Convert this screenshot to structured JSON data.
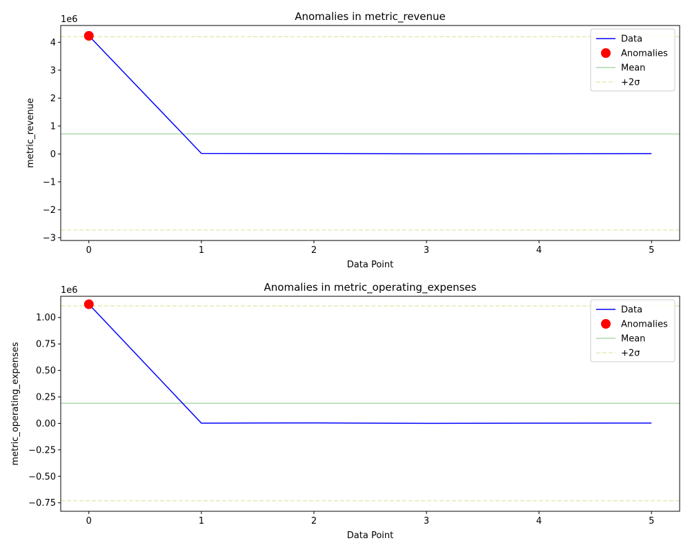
{
  "chart_data": [
    {
      "type": "line",
      "title": "Anomalies in metric_revenue",
      "xlabel": "Data Point",
      "ylabel": "metric_revenue",
      "offset_text": "1e6",
      "x": [
        0,
        1,
        2,
        3,
        4,
        5
      ],
      "xlim": [
        -0.25,
        5.25
      ],
      "ylim": [
        -3.1,
        4.6
      ],
      "xticks": [
        0,
        1,
        2,
        3,
        4,
        5
      ],
      "yticks": [
        -3,
        -2,
        -1,
        0,
        1,
        2,
        3,
        4
      ],
      "series": [
        {
          "name": "Data",
          "kind": "line",
          "color": "#0000ff",
          "values": [
            4.23,
            0.02,
            0.015,
            0.005,
            0.008,
            0.012
          ]
        }
      ],
      "anomalies": {
        "name": "Anomalies",
        "color": "#ff0000",
        "x": [
          0
        ],
        "values": [
          4.23
        ]
      },
      "mean": {
        "name": "Mean",
        "color": "#2ca02c",
        "value": 0.715
      },
      "upper": {
        "name": "+2σ",
        "color": "#bcbd22",
        "value": 4.2
      },
      "lower": {
        "value": -2.73
      },
      "legend": "top-right",
      "grid": false
    },
    {
      "type": "line",
      "title": "Anomalies in metric_operating_expenses",
      "xlabel": "Data Point",
      "ylabel": "metric_operating_expenses",
      "offset_text": "1e6",
      "x": [
        0,
        1,
        2,
        3,
        4,
        5
      ],
      "xlim": [
        -0.25,
        5.25
      ],
      "ylim": [
        -0.83,
        1.2
      ],
      "xticks": [
        0,
        1,
        2,
        3,
        4,
        5
      ],
      "yticks": [
        -0.75,
        -0.5,
        -0.25,
        0.0,
        0.25,
        0.5,
        0.75,
        1.0
      ],
      "ytick_decimals": 2,
      "series": [
        {
          "name": "Data",
          "kind": "line",
          "color": "#0000ff",
          "values": [
            1.125,
            0.002,
            0.004,
            0.0,
            0.002,
            0.003
          ]
        }
      ],
      "anomalies": {
        "name": "Anomalies",
        "color": "#ff0000",
        "x": [
          0
        ],
        "values": [
          1.125
        ]
      },
      "mean": {
        "name": "Mean",
        "color": "#2ca02c",
        "value": 0.19
      },
      "upper": {
        "name": "+2σ",
        "color": "#bcbd22",
        "value": 1.11
      },
      "lower": {
        "value": -0.73
      },
      "legend": "top-right",
      "grid": false
    }
  ]
}
